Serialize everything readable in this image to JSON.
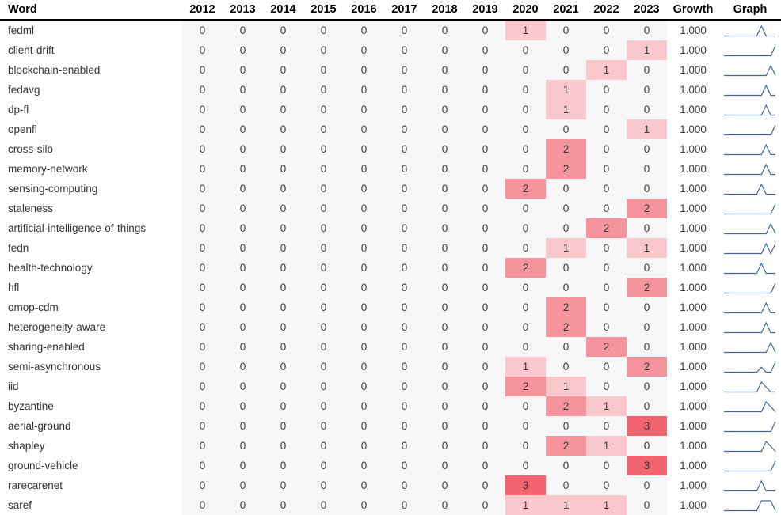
{
  "chart_data": {
    "type": "table",
    "title": "Word frequency by year with growth and sparkline graph",
    "columns": [
      "Word",
      "2012",
      "2013",
      "2014",
      "2015",
      "2016",
      "2017",
      "2018",
      "2019",
      "2020",
      "2021",
      "2022",
      "2023",
      "Growth",
      "Graph"
    ],
    "years": [
      2012,
      2013,
      2014,
      2015,
      2016,
      2017,
      2018,
      2019,
      2020,
      2021,
      2022,
      2023
    ],
    "rows": [
      {
        "word": "fedml",
        "values": [
          0,
          0,
          0,
          0,
          0,
          0,
          0,
          0,
          1,
          0,
          0,
          0
        ],
        "growth": "1.000"
      },
      {
        "word": "client-drift",
        "values": [
          0,
          0,
          0,
          0,
          0,
          0,
          0,
          0,
          0,
          0,
          0,
          1
        ],
        "growth": "1.000"
      },
      {
        "word": "blockchain-enabled",
        "values": [
          0,
          0,
          0,
          0,
          0,
          0,
          0,
          0,
          0,
          0,
          1,
          0
        ],
        "growth": "1.000"
      },
      {
        "word": "fedavg",
        "values": [
          0,
          0,
          0,
          0,
          0,
          0,
          0,
          0,
          0,
          1,
          0,
          0
        ],
        "growth": "1.000"
      },
      {
        "word": "dp-fl",
        "values": [
          0,
          0,
          0,
          0,
          0,
          0,
          0,
          0,
          0,
          1,
          0,
          0
        ],
        "growth": "1.000"
      },
      {
        "word": "openfl",
        "values": [
          0,
          0,
          0,
          0,
          0,
          0,
          0,
          0,
          0,
          0,
          0,
          1
        ],
        "growth": "1.000"
      },
      {
        "word": "cross-silo",
        "values": [
          0,
          0,
          0,
          0,
          0,
          0,
          0,
          0,
          0,
          2,
          0,
          0
        ],
        "growth": "1.000"
      },
      {
        "word": "memory-network",
        "values": [
          0,
          0,
          0,
          0,
          0,
          0,
          0,
          0,
          0,
          2,
          0,
          0
        ],
        "growth": "1.000"
      },
      {
        "word": "sensing-computing",
        "values": [
          0,
          0,
          0,
          0,
          0,
          0,
          0,
          0,
          2,
          0,
          0,
          0
        ],
        "growth": "1.000"
      },
      {
        "word": "staleness",
        "values": [
          0,
          0,
          0,
          0,
          0,
          0,
          0,
          0,
          0,
          0,
          0,
          2
        ],
        "growth": "1.000"
      },
      {
        "word": "artificial-intelligence-of-things",
        "values": [
          0,
          0,
          0,
          0,
          0,
          0,
          0,
          0,
          0,
          0,
          2,
          0
        ],
        "growth": "1.000"
      },
      {
        "word": "fedn",
        "values": [
          0,
          0,
          0,
          0,
          0,
          0,
          0,
          0,
          0,
          1,
          0,
          1
        ],
        "growth": "1.000"
      },
      {
        "word": "health-technology",
        "values": [
          0,
          0,
          0,
          0,
          0,
          0,
          0,
          0,
          2,
          0,
          0,
          0
        ],
        "growth": "1.000"
      },
      {
        "word": "hfl",
        "values": [
          0,
          0,
          0,
          0,
          0,
          0,
          0,
          0,
          0,
          0,
          0,
          2
        ],
        "growth": "1.000"
      },
      {
        "word": "omop-cdm",
        "values": [
          0,
          0,
          0,
          0,
          0,
          0,
          0,
          0,
          0,
          2,
          0,
          0
        ],
        "growth": "1.000"
      },
      {
        "word": "heterogeneity-aware",
        "values": [
          0,
          0,
          0,
          0,
          0,
          0,
          0,
          0,
          0,
          2,
          0,
          0
        ],
        "growth": "1.000"
      },
      {
        "word": "sharing-enabled",
        "values": [
          0,
          0,
          0,
          0,
          0,
          0,
          0,
          0,
          0,
          0,
          2,
          0
        ],
        "growth": "1.000"
      },
      {
        "word": "semi-asynchronous",
        "values": [
          0,
          0,
          0,
          0,
          0,
          0,
          0,
          0,
          1,
          0,
          0,
          2
        ],
        "growth": "1.000"
      },
      {
        "word": "iid",
        "values": [
          0,
          0,
          0,
          0,
          0,
          0,
          0,
          0,
          2,
          1,
          0,
          0
        ],
        "growth": "1.000"
      },
      {
        "word": "byzantine",
        "values": [
          0,
          0,
          0,
          0,
          0,
          0,
          0,
          0,
          0,
          2,
          1,
          0
        ],
        "growth": "1.000"
      },
      {
        "word": "aerial-ground",
        "values": [
          0,
          0,
          0,
          0,
          0,
          0,
          0,
          0,
          0,
          0,
          0,
          3
        ],
        "growth": "1.000"
      },
      {
        "word": "shapley",
        "values": [
          0,
          0,
          0,
          0,
          0,
          0,
          0,
          0,
          0,
          2,
          1,
          0
        ],
        "growth": "1.000"
      },
      {
        "word": "ground-vehicle",
        "values": [
          0,
          0,
          0,
          0,
          0,
          0,
          0,
          0,
          0,
          0,
          0,
          3
        ],
        "growth": "1.000"
      },
      {
        "word": "rarecarenet",
        "values": [
          0,
          0,
          0,
          0,
          0,
          0,
          0,
          0,
          3,
          0,
          0,
          0
        ],
        "growth": "1.000"
      },
      {
        "word": "saref",
        "values": [
          0,
          0,
          0,
          0,
          0,
          0,
          0,
          0,
          1,
          1,
          1,
          0
        ],
        "growth": "1.000"
      }
    ],
    "heat_colors": {
      "1": "#f8c8cd",
      "2": "#f5949c",
      "3": "#f2646e"
    },
    "cell_bg_color": "#f7f6f8",
    "sparkline_color": "#45689a",
    "legend_position": "none",
    "grid": false
  }
}
